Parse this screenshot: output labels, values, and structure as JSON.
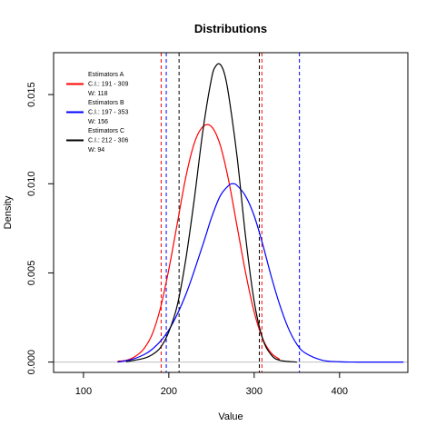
{
  "chart_data": {
    "type": "line",
    "title": "Distributions",
    "xlabel": "Value",
    "ylabel": "Density",
    "xlim": [
      65,
      480
    ],
    "ylim": [
      -0.00058,
      0.01735
    ],
    "xticks": [
      100,
      200,
      300,
      400
    ],
    "xtick_labels": [
      "100",
      "200",
      "300",
      "400"
    ],
    "yticks": [
      0,
      0.005,
      0.01,
      0.015
    ],
    "ytick_labels": [
      "0.000",
      "0.005",
      "0.010",
      "0.015"
    ],
    "grid": false,
    "legend_position": "top-left",
    "baseline_color": "#bebebe",
    "series": [
      {
        "name": "Estimators A",
        "color": "#ff0000",
        "ci_text": "C.I.: 191 - 309",
        "width_text": "W: 118",
        "ci": [
          191,
          309
        ],
        "x": [
          140,
          150,
          160,
          170,
          180,
          190,
          200,
          210,
          220,
          230,
          240,
          250,
          260,
          270,
          280,
          290,
          300,
          310,
          320,
          330
        ],
        "y": [
          5e-05,
          0.0001,
          0.0003,
          0.0007,
          0.0015,
          0.003,
          0.0052,
          0.0078,
          0.0104,
          0.0123,
          0.0132,
          0.0132,
          0.0122,
          0.0102,
          0.0076,
          0.005,
          0.0028,
          0.0013,
          0.0005,
          0.00015
        ]
      },
      {
        "name": "Estimators B",
        "color": "#0000ff",
        "ci_text": "C.I.: 197 - 353",
        "width_text": "W: 156",
        "ci": [
          197,
          353
        ],
        "x": [
          140,
          160,
          180,
          200,
          220,
          240,
          250,
          260,
          270,
          275,
          280,
          290,
          300,
          310,
          320,
          330,
          340,
          350,
          360,
          380,
          400,
          420,
          440,
          460,
          475
        ],
        "y": [
          0.0,
          0.0002,
          0.0007,
          0.0018,
          0.0038,
          0.0066,
          0.0081,
          0.0093,
          0.0099,
          0.01,
          0.0099,
          0.0093,
          0.0082,
          0.0066,
          0.0048,
          0.0032,
          0.0019,
          0.001,
          0.0005,
          0.0001,
          2e-05,
          0.0,
          0.0,
          0.0,
          0.0
        ]
      },
      {
        "name": "Estimators C",
        "color": "#000000",
        "ci_text": "C.I.: 212 - 306",
        "width_text": "W: 94",
        "ci": [
          212,
          306
        ],
        "x": [
          150,
          170,
          180,
          190,
          200,
          210,
          220,
          230,
          240,
          250,
          255,
          260,
          265,
          270,
          280,
          290,
          300,
          310,
          320,
          330,
          350
        ],
        "y": [
          2e-05,
          0.0002,
          0.0004,
          0.0008,
          0.0017,
          0.0032,
          0.0058,
          0.0092,
          0.013,
          0.0159,
          0.0166,
          0.0167,
          0.0162,
          0.015,
          0.0115,
          0.007,
          0.0034,
          0.0013,
          0.0004,
          0.0001,
          0.0
        ]
      }
    ]
  }
}
